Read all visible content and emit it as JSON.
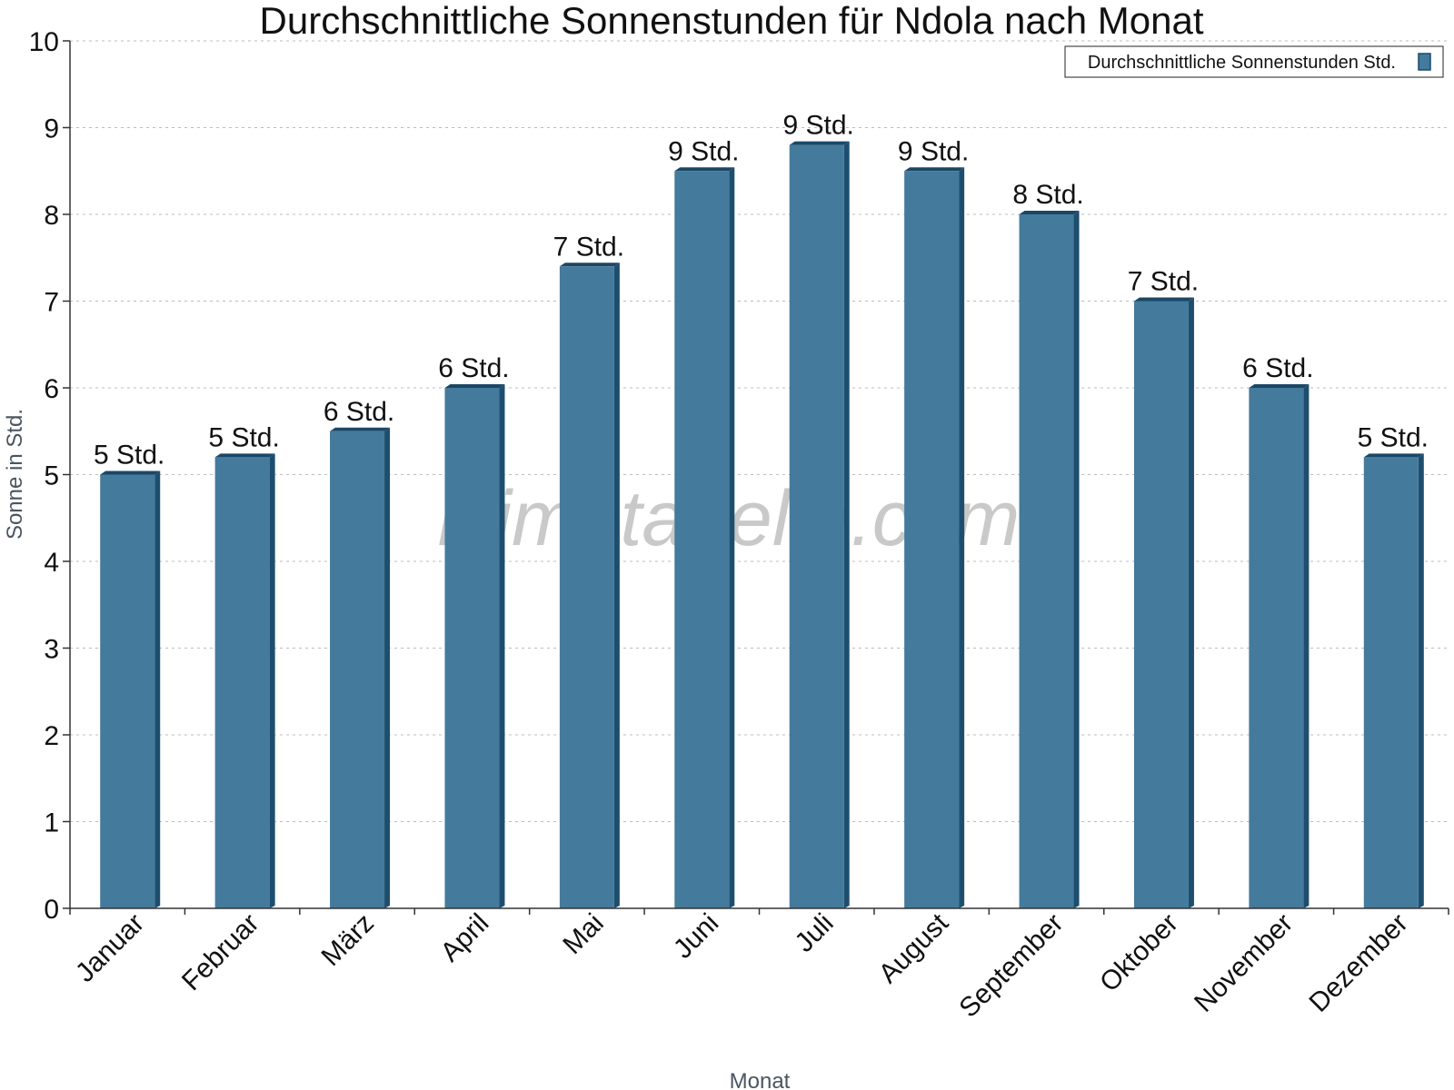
{
  "chart_data": {
    "type": "bar",
    "title": "Durchschnittliche Sonnenstunden für Ndola nach Monat",
    "xlabel": "Monat",
    "ylabel": "Sonne in Std.",
    "ylim": [
      0,
      10
    ],
    "yticks": [
      "0",
      "1",
      "2",
      "3",
      "4",
      "5",
      "6",
      "7",
      "8",
      "9",
      "10"
    ],
    "grid": true,
    "legend_position": "top-right",
    "categories": [
      "Januar",
      "Februar",
      "März",
      "April",
      "Mai",
      "Juni",
      "Juli",
      "August",
      "September",
      "Oktober",
      "November",
      "Dezember"
    ],
    "series": [
      {
        "name": "Durchschnittliche Sonnenstunden Std.",
        "color": "#447a9c",
        "values": [
          5.0,
          5.2,
          5.5,
          6.0,
          7.4,
          8.5,
          8.8,
          8.5,
          8.0,
          7.0,
          6.0,
          5.2
        ],
        "data_labels": [
          "5 Std.",
          "5 Std.",
          "6 Std.",
          "6 Std.",
          "7 Std.",
          "9 Std.",
          "9 Std.",
          "9 Std.",
          "8 Std.",
          "7 Std.",
          "6 Std.",
          "5 Std."
        ]
      }
    ],
    "watermark": "klimatabelle.com"
  }
}
